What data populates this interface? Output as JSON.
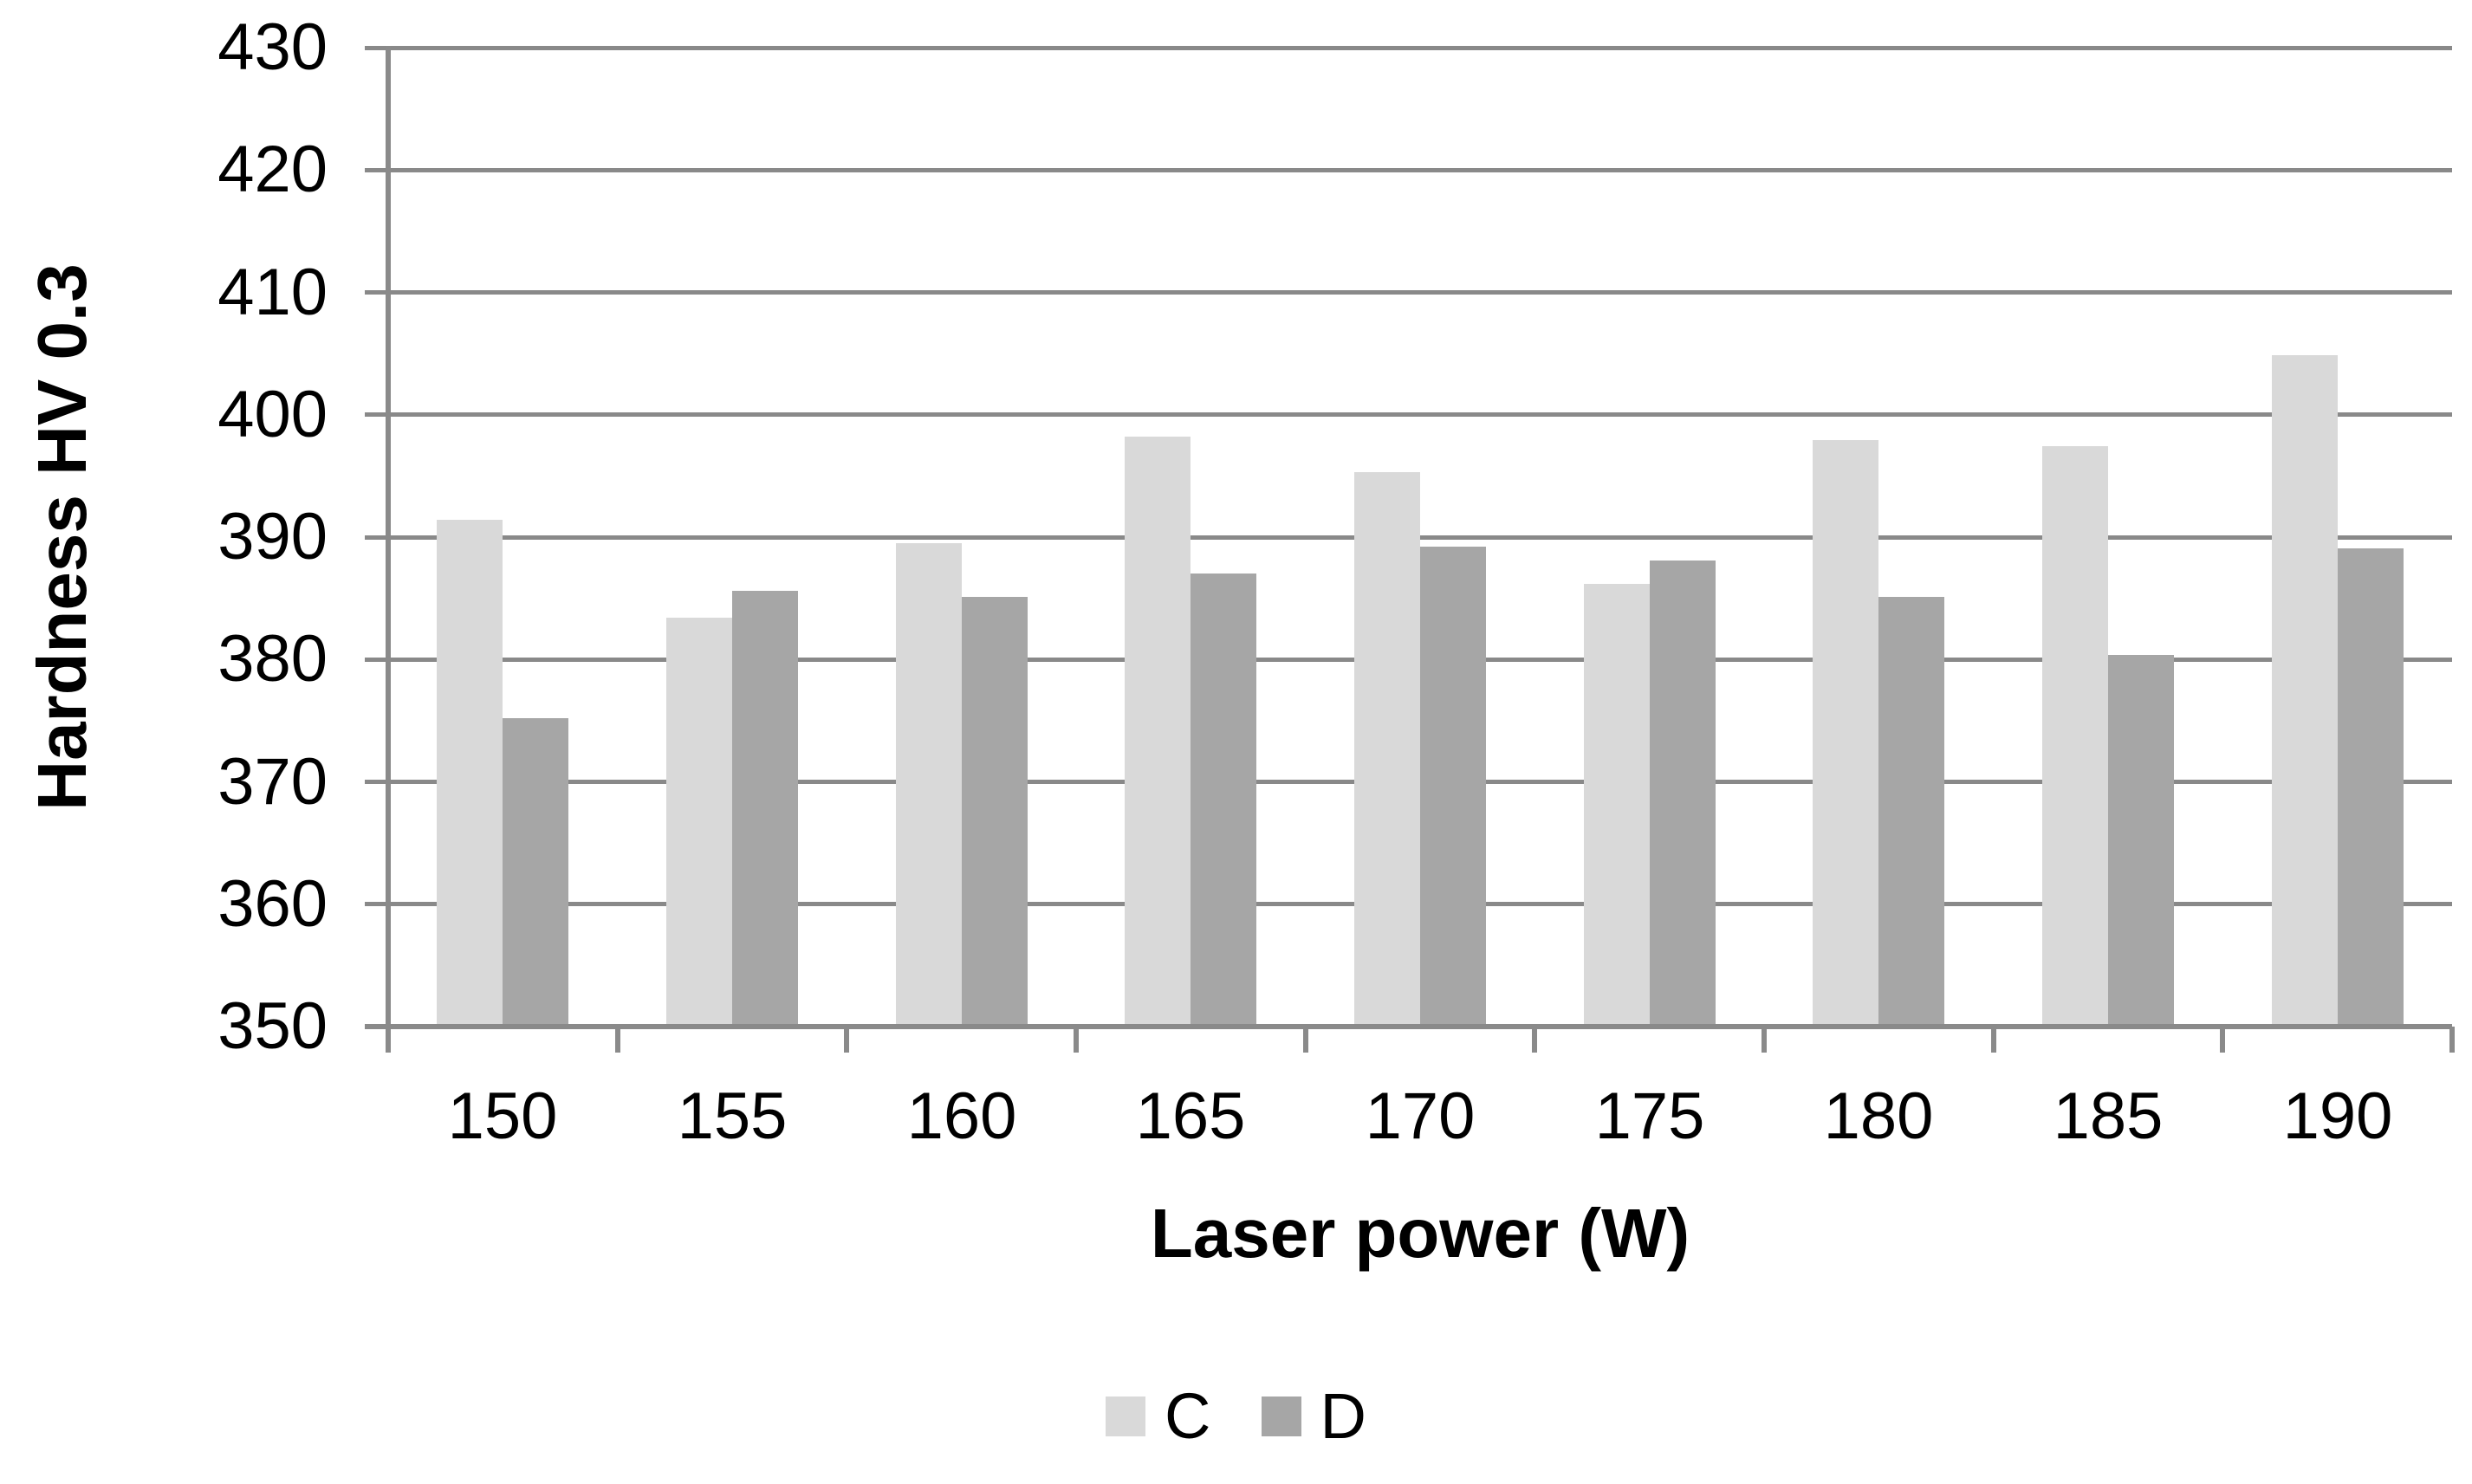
{
  "chart_data": {
    "type": "bar",
    "title": "",
    "categories": [
      "150",
      "155",
      "160",
      "165",
      "170",
      "175",
      "180",
      "185",
      "190"
    ],
    "series": [
      {
        "name": "C",
        "color": "#d9d9d9",
        "values": [
          391.4,
          383.4,
          389.5,
          398.2,
          395.3,
          386.2,
          397.9,
          397.4,
          404.9
        ]
      },
      {
        "name": "D",
        "color": "#a6a6a6",
        "values": [
          375.2,
          385.6,
          385.1,
          387.0,
          389.2,
          388.1,
          385.1,
          380.4,
          389.1
        ]
      }
    ],
    "xlabel": "Laser power (W)",
    "ylabel": "Hardness HV 0.3",
    "ylim": [
      350,
      430
    ],
    "yticks": [
      "350",
      "360",
      "370",
      "380",
      "390",
      "400",
      "410",
      "420",
      "430"
    ],
    "ytick_step": 10,
    "grid": true,
    "legend_position": "bottom",
    "colors": {
      "gridline": "#898989",
      "axis": "#8a8a8a",
      "text": "#000000",
      "background": "#ffffff"
    }
  }
}
